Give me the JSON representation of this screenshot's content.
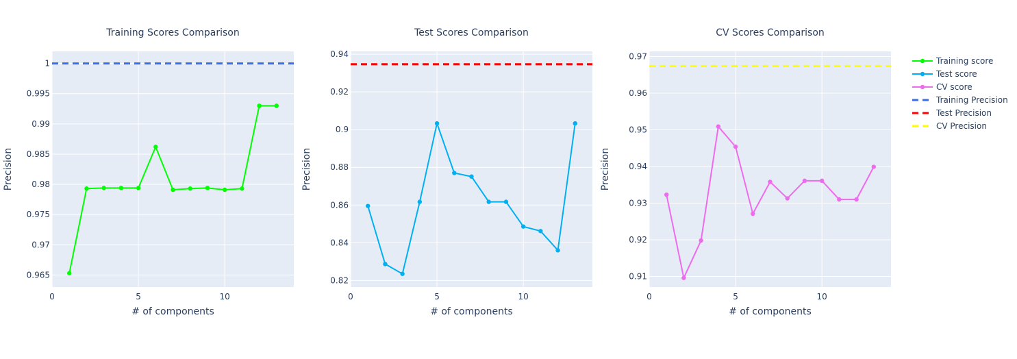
{
  "colors": {
    "plot_bg": "#e5ecf6",
    "grid": "#ffffff",
    "text": "#2a3f5f"
  },
  "legend": {
    "position": "top-right",
    "items": [
      {
        "label": "Training score",
        "color": "#00ff00",
        "style": "line-marker"
      },
      {
        "label": "Test score",
        "color": "#00b0f0",
        "style": "line-marker"
      },
      {
        "label": "CV score",
        "color": "#ee6bee",
        "style": "line-marker"
      },
      {
        "label": "Training Precision",
        "color": "#3a6ee8",
        "style": "dash"
      },
      {
        "label": "Test Precision",
        "color": "#ff0000",
        "style": "dash"
      },
      {
        "label": "CV Precision",
        "color": "#ffff00",
        "style": "dash"
      }
    ]
  },
  "chart_data": [
    {
      "type": "line",
      "title": "Training Scores Comparison",
      "xlabel": "# of components",
      "ylabel": "Precision",
      "xlim": [
        0,
        14
      ],
      "ylim": [
        0.963,
        1.002
      ],
      "xticks": [
        0,
        5,
        10
      ],
      "xtick_labels": [
        "0",
        "5",
        "10"
      ],
      "yticks": [
        0.965,
        0.97,
        0.975,
        0.98,
        0.985,
        0.99,
        0.995,
        1
      ],
      "ytick_labels": [
        "0.965",
        "0.97",
        "0.975",
        "0.98",
        "0.985",
        "0.99",
        "0.995",
        "1"
      ],
      "grid": true,
      "series": [
        {
          "name": "Training score",
          "color": "#00ff00",
          "x": [
            1,
            2,
            3,
            4,
            5,
            6,
            7,
            8,
            9,
            10,
            11,
            12,
            13
          ],
          "y": [
            0.9653,
            0.9793,
            0.9794,
            0.9794,
            0.9794,
            0.9862,
            0.9791,
            0.9793,
            0.9794,
            0.9791,
            0.9793,
            0.993,
            0.993
          ]
        }
      ],
      "reference_line": {
        "name": "Training Precision",
        "value": 1.0,
        "color": "#3a6ee8"
      }
    },
    {
      "type": "line",
      "title": "Test Scores Comparison",
      "xlabel": "# of components",
      "ylabel": "Precision",
      "xlim": [
        0,
        14
      ],
      "ylim": [
        0.8165,
        0.9415
      ],
      "xticks": [
        0,
        5,
        10
      ],
      "xtick_labels": [
        "0",
        "5",
        "10"
      ],
      "yticks": [
        0.82,
        0.84,
        0.86,
        0.88,
        0.9,
        0.92,
        0.94
      ],
      "ytick_labels": [
        "0.82",
        "0.84",
        "0.86",
        "0.88",
        "0.9",
        "0.92",
        "0.94"
      ],
      "grid": true,
      "series": [
        {
          "name": "Test score",
          "color": "#00b0f0",
          "x": [
            1,
            2,
            3,
            4,
            5,
            6,
            7,
            8,
            9,
            10,
            11,
            12,
            13
          ],
          "y": [
            0.8595,
            0.8287,
            0.8235,
            0.8617,
            0.9033,
            0.877,
            0.8751,
            0.8617,
            0.8617,
            0.8486,
            0.8462,
            0.836,
            0.9033
          ]
        }
      ],
      "reference_line": {
        "name": "Test Precision",
        "value": 0.9347,
        "color": "#ff0000"
      }
    },
    {
      "type": "line",
      "title": "CV Scores Comparison",
      "xlabel": "# of components",
      "ylabel": "Precision",
      "xlim": [
        0,
        14
      ],
      "ylim": [
        0.9071,
        0.9714
      ],
      "xticks": [
        0,
        5,
        10
      ],
      "xtick_labels": [
        "0",
        "5",
        "10"
      ],
      "yticks": [
        0.91,
        0.92,
        0.93,
        0.94,
        0.95,
        0.96,
        0.97
      ],
      "ytick_labels": [
        "0.91",
        "0.92",
        "0.93",
        "0.94",
        "0.95",
        "0.96",
        "0.97"
      ],
      "grid": true,
      "series": [
        {
          "name": "CV score",
          "color": "#ee6bee",
          "x": [
            1,
            2,
            3,
            4,
            5,
            6,
            7,
            8,
            9,
            10,
            11,
            12,
            13
          ],
          "y": [
            0.9323,
            0.9096,
            0.9198,
            0.9509,
            0.9454,
            0.9271,
            0.9358,
            0.9313,
            0.9361,
            0.9361,
            0.931,
            0.931,
            0.9399
          ]
        }
      ],
      "reference_line": {
        "name": "CV Precision",
        "value": 0.9674,
        "color": "#ffff00"
      }
    }
  ]
}
